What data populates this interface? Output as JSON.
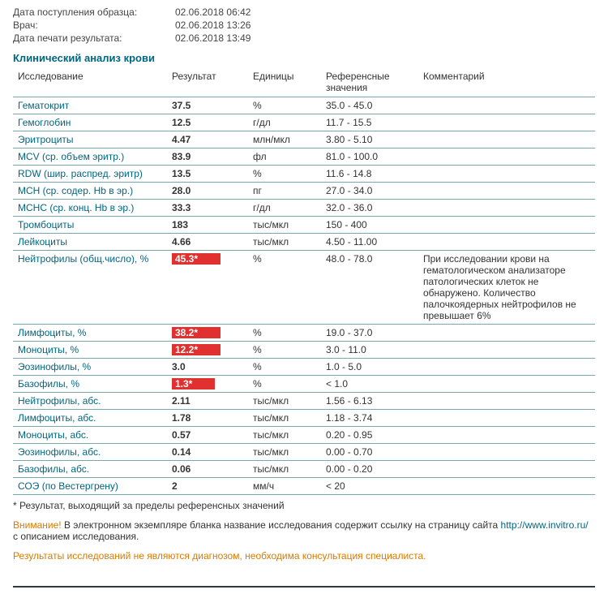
{
  "meta": [
    {
      "label": "Дата поступления образца:",
      "value": "02.06.2018 06:42"
    },
    {
      "label": "Врач:",
      "value": "02.06.2018 13:26"
    },
    {
      "label": "Дата печати результата:",
      "value": "02.06.2018 13:49"
    }
  ],
  "section_title": "Клинический анализ крови",
  "columns": {
    "test": "Исследование",
    "result": "Результат",
    "unit": "Единицы",
    "ref": "Референсные значения",
    "comment": "Комментарий"
  },
  "rows": [
    {
      "test": "Гематокрит",
      "result": "37.5",
      "unit": "%",
      "ref": "35.0 - 45.0",
      "flag": false
    },
    {
      "test": "Гемоглобин",
      "result": "12.5",
      "unit": "г/дл",
      "ref": "11.7 - 15.5",
      "flag": false
    },
    {
      "test": "Эритроциты",
      "result": "4.47",
      "unit": "млн/мкл",
      "ref": "3.80 - 5.10",
      "flag": false
    },
    {
      "test": "MCV (ср. объем эритр.)",
      "result": "83.9",
      "unit": "фл",
      "ref": "81.0 - 100.0",
      "flag": false
    },
    {
      "test": "RDW (шир. распред. эритр)",
      "result": "13.5",
      "unit": "%",
      "ref": "11.6 - 14.8",
      "flag": false
    },
    {
      "test": "MCH (ср. содер. Hb в эр.)",
      "result": "28.0",
      "unit": "пг",
      "ref": "27.0 - 34.0",
      "flag": false
    },
    {
      "test": "MCHC (ср. конц. Hb в эр.)",
      "result": "33.3",
      "unit": "г/дл",
      "ref": "32.0 - 36.0",
      "flag": false
    },
    {
      "test": "Тромбоциты",
      "result": "183",
      "unit": "тыс/мкл",
      "ref": "150 - 400",
      "flag": false
    },
    {
      "test": "Лейкоциты",
      "result": "4.66",
      "unit": "тыс/мкл",
      "ref": "4.50 - 11.00",
      "flag": false
    },
    {
      "test": "Нейтрофилы (общ.число), %",
      "result": "45.3*",
      "unit": "%",
      "ref": "48.0 - 78.0",
      "flag": true,
      "comment": "При исследовании крови на гематологическом анализаторе патологических клеток не обнаружено. Количество палочкоядерных нейтрофилов не превышает 6%"
    },
    {
      "test": "Лимфоциты, %",
      "result": "38.2*",
      "unit": "%",
      "ref": "19.0 - 37.0",
      "flag": true
    },
    {
      "test": "Моноциты, %",
      "result": "12.2*",
      "unit": "%",
      "ref": "3.0 - 11.0",
      "flag": true
    },
    {
      "test": "Эозинофилы, %",
      "result": "3.0",
      "unit": "%",
      "ref": "1.0 - 5.0",
      "flag": false
    },
    {
      "test": "Базофилы, %",
      "result": "1.3*",
      "unit": "%",
      "ref": "< 1.0",
      "flag": true
    },
    {
      "test": "Нейтрофилы, абс.",
      "result": "2.11",
      "unit": "тыс/мкл",
      "ref": "1.56 - 6.13",
      "flag": false
    },
    {
      "test": "Лимфоциты, абс.",
      "result": "1.78",
      "unit": "тыс/мкл",
      "ref": "1.18 - 3.74",
      "flag": false
    },
    {
      "test": "Моноциты, абс.",
      "result": "0.57",
      "unit": "тыс/мкл",
      "ref": "0.20 - 0.95",
      "flag": false
    },
    {
      "test": "Эозинофилы, абс.",
      "result": "0.14",
      "unit": "тыс/мкл",
      "ref": "0.00 - 0.70",
      "flag": false
    },
    {
      "test": "Базофилы, абс.",
      "result": "0.06",
      "unit": "тыс/мкл",
      "ref": "0.00 - 0.20",
      "flag": false
    },
    {
      "test": "СОЭ (по Вестергрену)",
      "result": "2",
      "unit": "мм/ч",
      "ref": "< 20",
      "flag": false
    }
  ],
  "footnote": "* Результат, выходящий за пределы референсных значений",
  "warning_label": "Внимание!",
  "warning_body": " В электронном экземпляре бланка название исследования содержит ссылку на страницу сайта ",
  "warning_link": "http://www.invitro.ru/",
  "warning_tail": " с описанием исследования.",
  "disclaimer": "Результаты исследований не являются диагнозом, необходима консультация специалиста."
}
